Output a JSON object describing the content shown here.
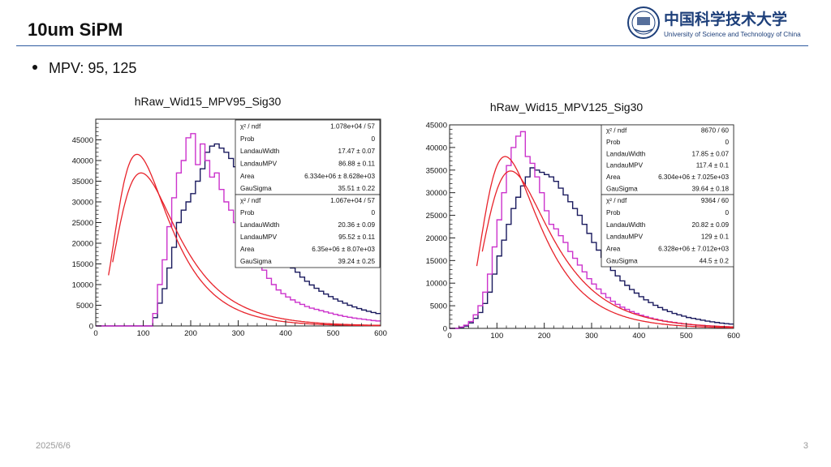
{
  "slide": {
    "title": "10um SiPM",
    "bullet": "MPV: 95, 125",
    "date": "2025/6/6",
    "page_number": "3"
  },
  "logo": {
    "name_cn": "中国科学技术大学",
    "name_en": "University of Science and Technology of China",
    "color": "#1d3f7a"
  },
  "colors": {
    "histogram_a": "#1a1a5e",
    "histogram_b": "#cc33cc",
    "fit": "#e8232b",
    "rule": "#2d5aa0"
  },
  "chart_data": [
    {
      "type": "histogram",
      "title": "hRaw_Wid15_MPV95_Sig30",
      "xlim": [
        0,
        600
      ],
      "ylim": [
        0,
        50000
      ],
      "xticks": [
        0,
        100,
        200,
        300,
        400,
        500,
        600
      ],
      "yticks": [
        0,
        5000,
        10000,
        15000,
        20000,
        25000,
        30000,
        35000,
        40000,
        45000
      ],
      "grid": false,
      "legend": "top-right",
      "stats_boxes": [
        {
          "rows": [
            [
              "χ² / ndf",
              "1.078e+04 / 57"
            ],
            [
              "Prob",
              "0"
            ],
            [
              "LandauWidth",
              "17.47 ± 0.07"
            ],
            [
              "LandauMPV",
              "86.88 ± 0.11"
            ],
            [
              "Area",
              "6.334e+06 ± 8.628e+03"
            ],
            [
              "GauSigma",
              "35.51 ± 0.22"
            ]
          ]
        },
        {
          "rows": [
            [
              "χ² / ndf",
              "1.067e+04 / 57"
            ],
            [
              "Prob",
              "0"
            ],
            [
              "LandauWidth",
              "20.36 ± 0.09"
            ],
            [
              "LandauMPV",
              "95.52 ± 0.11"
            ],
            [
              "Area",
              "6.35e+06 ± 8.07e+03"
            ],
            [
              "GauSigma",
              "39.24 ± 0.25"
            ]
          ]
        }
      ],
      "bin_width": 10,
      "series": [
        {
          "values": [
            0,
            0,
            0,
            0,
            0,
            0,
            0,
            0,
            0,
            0,
            0,
            0,
            2000,
            5500,
            9000,
            14000,
            19000,
            25000,
            28000,
            30000,
            32000,
            35000,
            38000,
            42000,
            43500,
            44000,
            43000,
            42000,
            40500,
            38500,
            36000,
            33500,
            31000,
            29000,
            26500,
            24000,
            22000,
            20000,
            18500,
            17000,
            15500,
            14000,
            13000,
            11800,
            10800,
            9900,
            9100,
            8400,
            7700,
            7100,
            6500,
            6000,
            5500,
            5000,
            4600,
            4200,
            3850,
            3550,
            3250,
            3000
          ]
        },
        {
          "values": [
            0,
            0,
            0,
            0,
            0,
            0,
            0,
            0,
            0,
            0,
            0,
            0,
            3000,
            10000,
            16000,
            24000,
            31000,
            37000,
            40000,
            45500,
            46500,
            39000,
            44000,
            40000,
            36000,
            37000,
            33000,
            30000,
            28000,
            25000,
            23000,
            21500,
            19500,
            17000,
            15500,
            13500,
            11500,
            10000,
            8700,
            7800,
            7000,
            6300,
            5700,
            5200,
            4700,
            4300,
            4000,
            3700,
            3400,
            3100,
            2800,
            2550,
            2300,
            2100,
            1900,
            1750,
            1600,
            1450,
            1300,
            1200
          ]
        }
      ],
      "fits": [
        {
          "mpv": 86.88,
          "width": 17.47,
          "sigma": 35.51,
          "peak": 41500
        },
        {
          "mpv": 95.52,
          "width": 20.36,
          "sigma": 39.24,
          "peak": 37000
        }
      ]
    },
    {
      "type": "histogram",
      "title": "hRaw_Wid15_MPV125_Sig30",
      "xlim": [
        0,
        600
      ],
      "ylim": [
        0,
        45000
      ],
      "xticks": [
        0,
        100,
        200,
        300,
        400,
        500,
        600
      ],
      "yticks": [
        0,
        5000,
        10000,
        15000,
        20000,
        25000,
        30000,
        35000,
        40000,
        45000
      ],
      "grid": false,
      "legend": "top-right",
      "stats_boxes": [
        {
          "rows": [
            [
              "χ² / ndf",
              "8670 / 60"
            ],
            [
              "Prob",
              "0"
            ],
            [
              "LandauWidth",
              "17.85 ± 0.07"
            ],
            [
              "LandauMPV",
              "117.4 ± 0.1"
            ],
            [
              "Area",
              "6.304e+06 ± 7.025e+03"
            ],
            [
              "GauSigma",
              "39.64 ± 0.18"
            ]
          ]
        },
        {
          "rows": [
            [
              "χ² / ndf",
              "9364 / 60"
            ],
            [
              "Prob",
              "0"
            ],
            [
              "LandauWidth",
              "20.82 ± 0.09"
            ],
            [
              "LandauMPV",
              "129 ± 0.1"
            ],
            [
              "Area",
              "6.328e+06 ± 7.012e+03"
            ],
            [
              "GauSigma",
              "44.5 ± 0.2"
            ]
          ]
        }
      ],
      "bin_width": 10,
      "series": [
        {
          "values": [
            0,
            0,
            200,
            500,
            1200,
            2200,
            3500,
            5500,
            8000,
            12000,
            16000,
            19500,
            23000,
            26500,
            29000,
            31500,
            33500,
            35500,
            35000,
            34500,
            34000,
            33500,
            32500,
            31000,
            29500,
            28000,
            26500,
            25000,
            23000,
            21000,
            19000,
            17300,
            15700,
            14200,
            12800,
            11600,
            10500,
            9500,
            8600,
            7800,
            7000,
            6300,
            5700,
            5100,
            4600,
            4100,
            3700,
            3300,
            3000,
            2700,
            2400,
            2200,
            2000,
            1800,
            1600,
            1450,
            1300,
            1150,
            1050,
            950
          ]
        },
        {
          "values": [
            0,
            0,
            300,
            700,
            1500,
            3000,
            5000,
            8000,
            12000,
            18000,
            24000,
            30000,
            36000,
            40000,
            42500,
            43500,
            38000,
            36500,
            33500,
            30000,
            26000,
            23000,
            22000,
            20500,
            19000,
            17000,
            15500,
            14000,
            12500,
            11000,
            9800,
            8700,
            7700,
            6800,
            6000,
            5300,
            4700,
            4200,
            3700,
            3300,
            2900,
            2600,
            2300,
            2050,
            1800,
            1600,
            1450,
            1300,
            1150,
            1000,
            900,
            800,
            700,
            650,
            580,
            520,
            460,
            410,
            370,
            330
          ]
        }
      ],
      "fits": [
        {
          "mpv": 117.4,
          "width": 17.85,
          "sigma": 39.64,
          "peak": 38000
        },
        {
          "mpv": 129,
          "width": 20.82,
          "sigma": 44.5,
          "peak": 34800
        }
      ]
    }
  ]
}
